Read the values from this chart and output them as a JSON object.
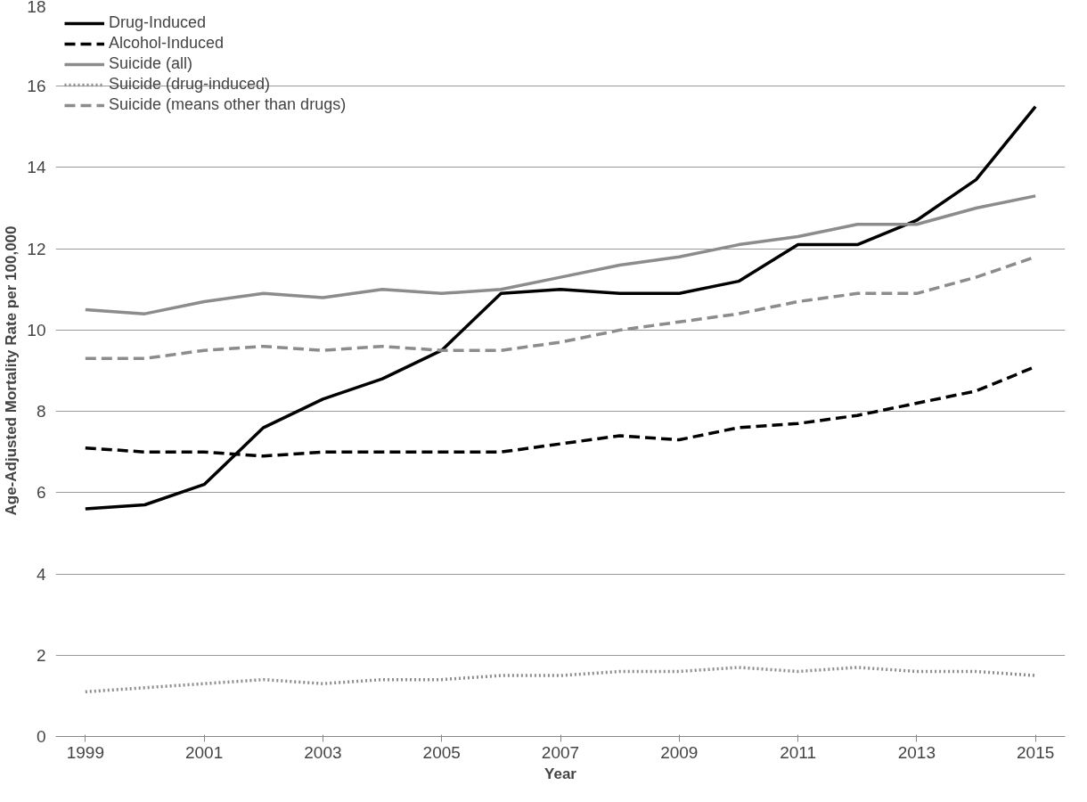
{
  "chart_data": {
    "type": "line",
    "xlabel": "Year",
    "ylabel": "Age-Adjusted Mortality Rate per 100,000",
    "x": [
      1999,
      2000,
      2001,
      2002,
      2003,
      2004,
      2005,
      2006,
      2007,
      2008,
      2009,
      2010,
      2011,
      2012,
      2013,
      2014,
      2015
    ],
    "xlim": [
      1998.5,
      2015.5
    ],
    "xticks": [
      1999,
      2001,
      2003,
      2005,
      2007,
      2009,
      2011,
      2013,
      2015
    ],
    "ylim": [
      0,
      18
    ],
    "yticks": [
      0,
      2,
      4,
      6,
      8,
      10,
      12,
      14,
      16,
      18
    ],
    "grid": "y",
    "legend": "top left",
    "marker": "none",
    "series": [
      {
        "name": "Drug-Induced",
        "color": "#000000",
        "line_style": "solid",
        "values": [
          5.6,
          5.7,
          6.2,
          7.6,
          8.3,
          8.8,
          9.5,
          10.9,
          11.0,
          10.9,
          10.9,
          11.2,
          12.1,
          12.1,
          12.7,
          13.7,
          15.5
        ]
      },
      {
        "name": "Alcohol-Induced",
        "color": "#000000",
        "line_style": "dashed",
        "values": [
          7.1,
          7.0,
          7.0,
          6.9,
          7.0,
          7.0,
          7.0,
          7.0,
          7.2,
          7.4,
          7.3,
          7.6,
          7.7,
          7.9,
          8.2,
          8.5,
          9.1
        ]
      },
      {
        "name": "Suicide (all)",
        "color": "#8c8c8c",
        "line_style": "solid",
        "values": [
          10.5,
          10.4,
          10.7,
          10.9,
          10.8,
          11.0,
          10.9,
          11.0,
          11.3,
          11.6,
          11.8,
          12.1,
          12.3,
          12.6,
          12.6,
          13.0,
          13.3
        ]
      },
      {
        "name": "Suicide (drug-induced)",
        "color": "#8c8c8c",
        "line_style": "dotted",
        "values": [
          1.1,
          1.2,
          1.3,
          1.4,
          1.3,
          1.4,
          1.4,
          1.5,
          1.5,
          1.6,
          1.6,
          1.7,
          1.6,
          1.7,
          1.6,
          1.6,
          1.5
        ]
      },
      {
        "name": "Suicide (means other than drugs)",
        "color": "#8c8c8c",
        "line_style": "dashed",
        "values": [
          9.3,
          9.3,
          9.5,
          9.6,
          9.5,
          9.6,
          9.5,
          9.5,
          9.7,
          10.0,
          10.2,
          10.4,
          10.7,
          10.9,
          10.9,
          11.3,
          11.8
        ]
      }
    ]
  }
}
